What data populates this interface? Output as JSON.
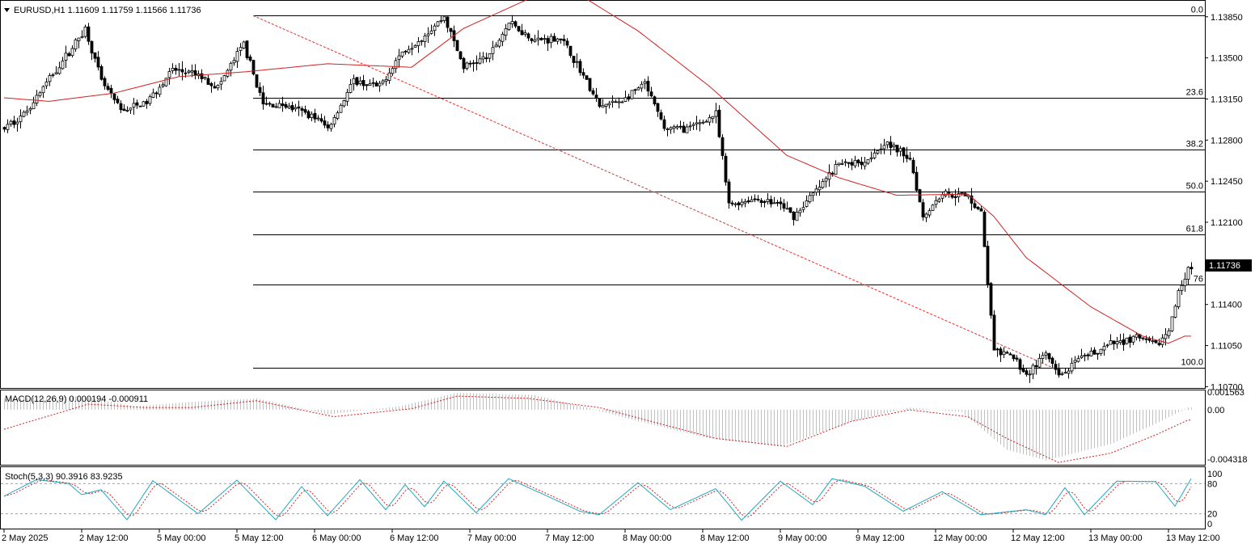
{
  "colors": {
    "background": "#ffffff",
    "frame": "#000000",
    "bull_body": "#ffffff",
    "bear_body": "#000000",
    "ma": "#d42020",
    "trendline": "#e03030",
    "fib": "#000000",
    "macd_hist": "#c0c0c0",
    "macd_signal": "#d42020",
    "stoch_main": "#20a8c0",
    "stoch_signal": "#d42020",
    "stoch_level": "#a0a0a0",
    "last_price_bg": "#000000",
    "last_price_fg": "#ffffff"
  },
  "price_pane": {
    "title": "EURUSD,H1  1.11609 1.11759 1.11566 1.11736",
    "menu_icon": "triangle-down-icon",
    "last_price_label": "1.11736",
    "last_price": 1.11736,
    "ylim": [
      1.10689,
      1.13986
    ],
    "yticks": [
      "1.13850",
      "1.13500",
      "1.13150",
      "1.12800",
      "1.12450",
      "1.12100",
      "1.11400",
      "1.11050",
      "1.10700"
    ],
    "fib_start_bar": 77,
    "fib_levels": [
      {
        "label": "0.0",
        "price": 1.1386
      },
      {
        "label": "23.6",
        "price": 1.13158
      },
      {
        "label": "38.2",
        "price": 1.12718
      },
      {
        "label": "50.0",
        "price": 1.1236
      },
      {
        "label": "61.8",
        "price": 1.12
      },
      {
        "label": "76",
        "price": 1.11572
      },
      {
        "label": "100.0",
        "price": 1.1086
      }
    ],
    "trendline": {
      "start": {
        "bar": 77,
        "price": 1.1386
      },
      "end": {
        "bar": 326,
        "price": 1.1084
      }
    }
  },
  "macd_pane": {
    "title": "MACD(12,26,9) 0.000194 -0.000911",
    "ylim": [
      -0.0048,
      0.0017
    ],
    "yticks": [
      "0.001563",
      "0.00",
      "-0.004318"
    ]
  },
  "stoch_pane": {
    "title": "Stoch(5,3,3) 90.3916 83.9235",
    "ylim": [
      0,
      100
    ],
    "levels": [
      20,
      80
    ],
    "yticks": [
      "100",
      "80",
      "20",
      "0"
    ]
  },
  "time_axis": {
    "labels": [
      "2 May 2025",
      "2 May 12:00",
      "5 May 00:00",
      "5 May 12:00",
      "6 May 00:00",
      "6 May 12:00",
      "7 May 00:00",
      "7 May 12:00",
      "8 May 00:00",
      "8 May 12:00",
      "9 May 00:00",
      "9 May 12:00",
      "12 May 00:00",
      "12 May 12:00",
      "13 May 00:00",
      "13 May 12:00"
    ]
  },
  "chart_data": {
    "type": "candlestick",
    "symbol": "EURUSD",
    "timeframe": "H1",
    "bar_count": 368,
    "visible_range": [
      "2 May 2025",
      "13 May 12:00"
    ],
    "moving_average_anchors": [
      {
        "bar": 0,
        "price": 1.1316
      },
      {
        "bar": 14,
        "price": 1.1313
      },
      {
        "bar": 34,
        "price": 1.132
      },
      {
        "bar": 54,
        "price": 1.1334
      },
      {
        "bar": 74,
        "price": 1.1338
      },
      {
        "bar": 100,
        "price": 1.1345
      },
      {
        "bar": 126,
        "price": 1.1342
      },
      {
        "bar": 142,
        "price": 1.1375
      },
      {
        "bar": 162,
        "price": 1.14
      },
      {
        "bar": 176,
        "price": 1.1407
      },
      {
        "bar": 196,
        "price": 1.1373
      },
      {
        "bar": 218,
        "price": 1.1326
      },
      {
        "bar": 242,
        "price": 1.1267
      },
      {
        "bar": 258,
        "price": 1.1248
      },
      {
        "bar": 276,
        "price": 1.1233
      },
      {
        "bar": 298,
        "price": 1.1234
      },
      {
        "bar": 306,
        "price": 1.1215
      },
      {
        "bar": 316,
        "price": 1.118
      },
      {
        "bar": 336,
        "price": 1.1138
      },
      {
        "bar": 352,
        "price": 1.1113
      },
      {
        "bar": 360,
        "price": 1.1107
      },
      {
        "bar": 365,
        "price": 1.1113
      }
    ],
    "close_anchors": [
      {
        "bar": 0,
        "price": 1.129
      },
      {
        "bar": 6,
        "price": 1.1302
      },
      {
        "bar": 12,
        "price": 1.1325
      },
      {
        "bar": 20,
        "price": 1.1355
      },
      {
        "bar": 25,
        "price": 1.1375
      },
      {
        "bar": 30,
        "price": 1.133
      },
      {
        "bar": 36,
        "price": 1.1305
      },
      {
        "bar": 44,
        "price": 1.1312
      },
      {
        "bar": 52,
        "price": 1.134
      },
      {
        "bar": 60,
        "price": 1.1335
      },
      {
        "bar": 66,
        "price": 1.1325
      },
      {
        "bar": 74,
        "price": 1.1362
      },
      {
        "bar": 80,
        "price": 1.131
      },
      {
        "bar": 86,
        "price": 1.131
      },
      {
        "bar": 96,
        "price": 1.13
      },
      {
        "bar": 100,
        "price": 1.129
      },
      {
        "bar": 108,
        "price": 1.133
      },
      {
        "bar": 116,
        "price": 1.1325
      },
      {
        "bar": 122,
        "price": 1.1352
      },
      {
        "bar": 130,
        "price": 1.137
      },
      {
        "bar": 136,
        "price": 1.1385
      },
      {
        "bar": 142,
        "price": 1.1342
      },
      {
        "bar": 150,
        "price": 1.1352
      },
      {
        "bar": 156,
        "price": 1.138
      },
      {
        "bar": 164,
        "price": 1.1365
      },
      {
        "bar": 172,
        "price": 1.1367
      },
      {
        "bar": 178,
        "price": 1.134
      },
      {
        "bar": 184,
        "price": 1.1308
      },
      {
        "bar": 192,
        "price": 1.1315
      },
      {
        "bar": 198,
        "price": 1.1328
      },
      {
        "bar": 204,
        "price": 1.129
      },
      {
        "bar": 212,
        "price": 1.129
      },
      {
        "bar": 220,
        "price": 1.1302
      },
      {
        "bar": 224,
        "price": 1.1225
      },
      {
        "bar": 232,
        "price": 1.123
      },
      {
        "bar": 240,
        "price": 1.1225
      },
      {
        "bar": 244,
        "price": 1.1215
      },
      {
        "bar": 252,
        "price": 1.124
      },
      {
        "bar": 258,
        "price": 1.126
      },
      {
        "bar": 266,
        "price": 1.1262
      },
      {
        "bar": 272,
        "price": 1.1278
      },
      {
        "bar": 280,
        "price": 1.1265
      },
      {
        "bar": 284,
        "price": 1.1215
      },
      {
        "bar": 290,
        "price": 1.1235
      },
      {
        "bar": 298,
        "price": 1.1232
      },
      {
        "bar": 302,
        "price": 1.1218
      },
      {
        "bar": 306,
        "price": 1.11
      },
      {
        "bar": 312,
        "price": 1.1095
      },
      {
        "bar": 316,
        "price": 1.108
      },
      {
        "bar": 322,
        "price": 1.1098
      },
      {
        "bar": 326,
        "price": 1.1078
      },
      {
        "bar": 332,
        "price": 1.1092
      },
      {
        "bar": 342,
        "price": 1.1106
      },
      {
        "bar": 350,
        "price": 1.1112
      },
      {
        "bar": 356,
        "price": 1.1105
      },
      {
        "bar": 360,
        "price": 1.1117
      },
      {
        "bar": 363,
        "price": 1.115
      },
      {
        "bar": 366,
        "price": 1.1172
      }
    ],
    "macd_histogram_anchors": [
      {
        "bar": 0,
        "value": 0.001
      },
      {
        "bar": 24,
        "value": 0.0012
      },
      {
        "bar": 40,
        "value": 0.0003
      },
      {
        "bar": 58,
        "value": 0.0007
      },
      {
        "bar": 78,
        "value": 0.001
      },
      {
        "bar": 100,
        "value": -0.0004
      },
      {
        "bar": 122,
        "value": 0.0003
      },
      {
        "bar": 140,
        "value": 0.0015
      },
      {
        "bar": 164,
        "value": 0.0013
      },
      {
        "bar": 180,
        "value": 0.0002
      },
      {
        "bar": 196,
        "value": -0.001
      },
      {
        "bar": 218,
        "value": -0.0025
      },
      {
        "bar": 240,
        "value": -0.0032
      },
      {
        "bar": 262,
        "value": -0.001
      },
      {
        "bar": 280,
        "value": 0.0002
      },
      {
        "bar": 296,
        "value": -0.0002
      },
      {
        "bar": 310,
        "value": -0.0035
      },
      {
        "bar": 322,
        "value": -0.0044
      },
      {
        "bar": 342,
        "value": -0.003
      },
      {
        "bar": 356,
        "value": -0.0012
      },
      {
        "bar": 366,
        "value": 0.0002
      }
    ],
    "macd_signal_anchors": [
      {
        "bar": 0,
        "value": -0.0017
      },
      {
        "bar": 26,
        "value": 0.0005
      },
      {
        "bar": 44,
        "value": 0.0002
      },
      {
        "bar": 58,
        "value": 0.0002
      },
      {
        "bar": 78,
        "value": 0.0008
      },
      {
        "bar": 102,
        "value": -0.0006
      },
      {
        "bar": 126,
        "value": 0.0001
      },
      {
        "bar": 140,
        "value": 0.0012
      },
      {
        "bar": 162,
        "value": 0.001
      },
      {
        "bar": 184,
        "value": 0.0002
      },
      {
        "bar": 200,
        "value": -0.001
      },
      {
        "bar": 220,
        "value": -0.0025
      },
      {
        "bar": 242,
        "value": -0.0032
      },
      {
        "bar": 262,
        "value": -0.001
      },
      {
        "bar": 280,
        "value": 0.0
      },
      {
        "bar": 298,
        "value": -0.0006
      },
      {
        "bar": 310,
        "value": -0.0025
      },
      {
        "bar": 326,
        "value": -0.0046
      },
      {
        "bar": 342,
        "value": -0.0038
      },
      {
        "bar": 356,
        "value": -0.0022
      },
      {
        "bar": 366,
        "value": -0.0009
      }
    ],
    "stoch_main_anchors": [
      {
        "bar": 0,
        "value": 55
      },
      {
        "bar": 10,
        "value": 88
      },
      {
        "bar": 20,
        "value": 80
      },
      {
        "bar": 24,
        "value": 58
      },
      {
        "bar": 30,
        "value": 68
      },
      {
        "bar": 38,
        "value": 8
      },
      {
        "bar": 46,
        "value": 86
      },
      {
        "bar": 60,
        "value": 20
      },
      {
        "bar": 72,
        "value": 87
      },
      {
        "bar": 84,
        "value": 8
      },
      {
        "bar": 92,
        "value": 74
      },
      {
        "bar": 100,
        "value": 16
      },
      {
        "bar": 110,
        "value": 88
      },
      {
        "bar": 118,
        "value": 28
      },
      {
        "bar": 124,
        "value": 78
      },
      {
        "bar": 130,
        "value": 34
      },
      {
        "bar": 136,
        "value": 85
      },
      {
        "bar": 146,
        "value": 22
      },
      {
        "bar": 156,
        "value": 90
      },
      {
        "bar": 168,
        "value": 55
      },
      {
        "bar": 178,
        "value": 25
      },
      {
        "bar": 184,
        "value": 18
      },
      {
        "bar": 196,
        "value": 82
      },
      {
        "bar": 206,
        "value": 28
      },
      {
        "bar": 220,
        "value": 70
      },
      {
        "bar": 228,
        "value": 7
      },
      {
        "bar": 240,
        "value": 85
      },
      {
        "bar": 250,
        "value": 38
      },
      {
        "bar": 256,
        "value": 90
      },
      {
        "bar": 266,
        "value": 75
      },
      {
        "bar": 278,
        "value": 25
      },
      {
        "bar": 290,
        "value": 64
      },
      {
        "bar": 302,
        "value": 18
      },
      {
        "bar": 316,
        "value": 28
      },
      {
        "bar": 322,
        "value": 18
      },
      {
        "bar": 328,
        "value": 72
      },
      {
        "bar": 334,
        "value": 18
      },
      {
        "bar": 344,
        "value": 85
      },
      {
        "bar": 356,
        "value": 84
      },
      {
        "bar": 362,
        "value": 35
      },
      {
        "bar": 367,
        "value": 90
      }
    ]
  }
}
